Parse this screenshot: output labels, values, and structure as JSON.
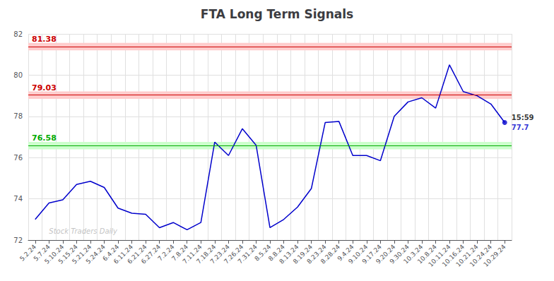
{
  "chart_data": {
    "type": "line",
    "title": "FTA Long Term Signals",
    "categories": [
      "5.2.24",
      "5.7.24",
      "5.10.24",
      "5.15.24",
      "5.21.24",
      "5.24.24",
      "6.4.24",
      "6.11.24",
      "6.21.24",
      "6.27.24",
      "7.2.24",
      "7.8.24",
      "7.11.24",
      "7.18.24",
      "7.23.24",
      "7.26.24",
      "7.31.24",
      "8.5.24",
      "8.8.24",
      "8.13.24",
      "8.19.24",
      "8.23.24",
      "8.28.24",
      "9.4.24",
      "9.10.24",
      "9.17.24",
      "9.20.24",
      "9.30.24",
      "10.3.24",
      "10.8.24",
      "10.11.24",
      "10.16.24",
      "10.21.24",
      "10.24.24",
      "10.29.24"
    ],
    "values": [
      73.0,
      73.8,
      73.95,
      74.7,
      74.85,
      74.55,
      73.55,
      73.3,
      73.25,
      72.6,
      72.85,
      72.5,
      72.85,
      76.75,
      76.1,
      77.4,
      76.6,
      72.6,
      73.0,
      73.6,
      74.5,
      77.7,
      77.75,
      76.1,
      76.1,
      75.85,
      78.0,
      78.7,
      78.9,
      78.4,
      80.5,
      79.2,
      79.0,
      78.6,
      77.7
    ],
    "color": "#0000cc",
    "ylim": [
      72,
      82
    ],
    "yticks": [
      72,
      74,
      76,
      78,
      80,
      82
    ],
    "grid": true,
    "hlines": [
      {
        "value": 81.38,
        "band": [
          81.2,
          81.56
        ],
        "color": "#cc0000",
        "fill": "#ffcccc"
      },
      {
        "value": 79.03,
        "band": [
          78.85,
          79.21
        ],
        "color": "#cc0000",
        "fill": "#ffcccc"
      },
      {
        "value": 76.58,
        "band": [
          76.4,
          76.76
        ],
        "color": "#00aa00",
        "fill": "#ccffcc"
      }
    ],
    "last_point": {
      "time_label": "15:59",
      "value_label": "77.7",
      "color": "#0000cc",
      "time_color": "#000000"
    },
    "watermark": "Stock Traders Daily",
    "watermark_color": "#bbbbbb"
  }
}
